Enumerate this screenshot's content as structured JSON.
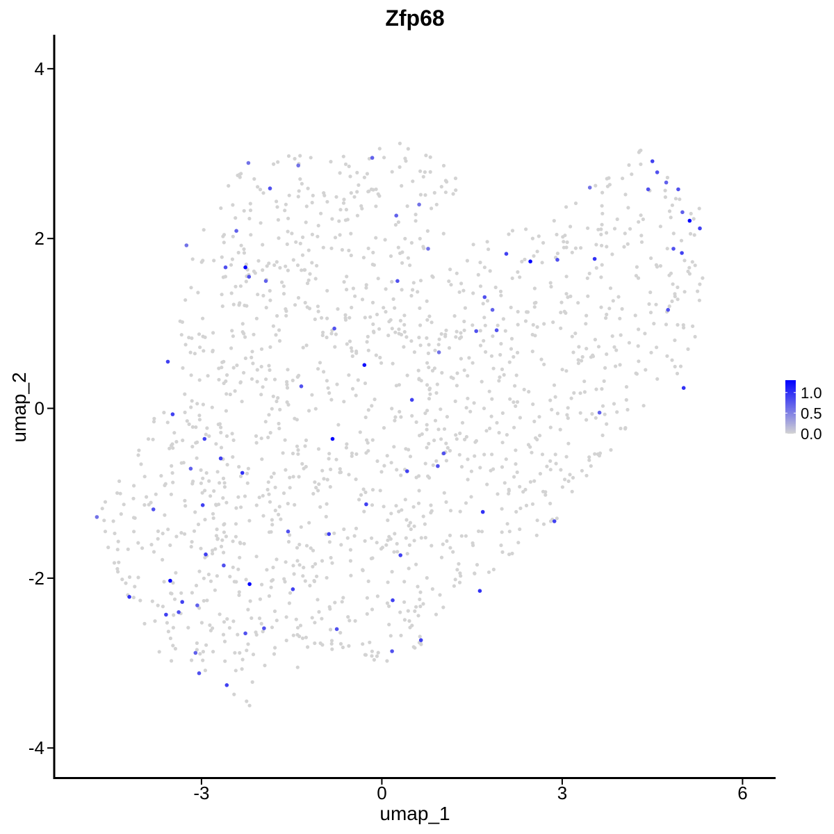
{
  "chart_data": {
    "type": "scatter",
    "title": "Zfp68",
    "xlabel": "umap_1",
    "ylabel": "umap_2",
    "xlim": [
      -5.45,
      6.55
    ],
    "ylim": [
      -4.35,
      4.4
    ],
    "x_ticks": [
      -3,
      0,
      3,
      6
    ],
    "y_ticks": [
      -4,
      -2,
      0,
      2,
      4
    ],
    "x_tick_labels": [
      "-3",
      "0",
      "3",
      "6"
    ],
    "y_tick_labels": [
      "-4",
      "-2",
      "0",
      "2",
      "4"
    ],
    "grid": false,
    "legend": {
      "placement": "right",
      "type": "colorbar",
      "title": "",
      "ticks": [
        0.0,
        0.5,
        1.0
      ],
      "tick_labels": [
        "0.0",
        "0.5",
        "1.0"
      ],
      "range": [
        0,
        1.3
      ]
    },
    "colors": {
      "low": "#d3d3d3",
      "high": "#0000ff"
    },
    "points": [
      {
        "x": -2.27,
        "y": 1.66,
        "v": 1.3
      },
      {
        "x": 2.47,
        "y": 1.73,
        "v": 1.3
      },
      {
        "x": 5.12,
        "y": 2.21,
        "v": 1.3
      },
      {
        "x": -3.52,
        "y": -2.03,
        "v": 1.3
      },
      {
        "x": -2.2,
        "y": -2.07,
        "v": 1.3
      },
      {
        "x": -0.82,
        "y": -0.36,
        "v": 1.3
      },
      {
        "x": -0.29,
        "y": 0.51,
        "v": 1.2
      },
      {
        "x": 4.5,
        "y": 2.91,
        "v": 0.9
      },
      {
        "x": 4.43,
        "y": 2.58,
        "v": 0.8
      },
      {
        "x": 4.58,
        "y": 2.78,
        "v": 0.8
      },
      {
        "x": 4.73,
        "y": 2.66,
        "v": 0.7
      },
      {
        "x": 4.93,
        "y": 2.58,
        "v": 0.8
      },
      {
        "x": 5.0,
        "y": 2.31,
        "v": 0.7
      },
      {
        "x": 5.29,
        "y": 2.12,
        "v": 0.9
      },
      {
        "x": 4.85,
        "y": 1.88,
        "v": 0.8
      },
      {
        "x": 4.99,
        "y": 1.83,
        "v": 0.9
      },
      {
        "x": 4.76,
        "y": 1.16,
        "v": 0.8
      },
      {
        "x": 5.02,
        "y": 0.24,
        "v": 1.0
      },
      {
        "x": 3.54,
        "y": 1.76,
        "v": 1.0
      },
      {
        "x": 2.92,
        "y": 1.75,
        "v": 0.8
      },
      {
        "x": 2.07,
        "y": 1.82,
        "v": 0.9
      },
      {
        "x": 3.46,
        "y": 2.6,
        "v": 0.6
      },
      {
        "x": 1.71,
        "y": 1.31,
        "v": 0.8
      },
      {
        "x": 1.84,
        "y": 1.16,
        "v": 0.7
      },
      {
        "x": 1.91,
        "y": 0.92,
        "v": 0.8
      },
      {
        "x": 0.77,
        "y": 1.88,
        "v": 0.6
      },
      {
        "x": 0.26,
        "y": 1.5,
        "v": 0.8
      },
      {
        "x": 0.24,
        "y": 2.27,
        "v": 0.7
      },
      {
        "x": 0.62,
        "y": 2.4,
        "v": 0.6
      },
      {
        "x": -0.16,
        "y": 2.95,
        "v": 0.7
      },
      {
        "x": -1.39,
        "y": 2.86,
        "v": 0.6
      },
      {
        "x": -1.86,
        "y": 2.59,
        "v": 0.8
      },
      {
        "x": -2.22,
        "y": 2.89,
        "v": 0.6
      },
      {
        "x": -2.42,
        "y": 2.09,
        "v": 0.7
      },
      {
        "x": -2.6,
        "y": 1.66,
        "v": 0.8
      },
      {
        "x": -2.21,
        "y": 1.55,
        "v": 0.8
      },
      {
        "x": -3.25,
        "y": 1.92,
        "v": 0.6
      },
      {
        "x": -1.93,
        "y": 1.5,
        "v": 0.7
      },
      {
        "x": -3.56,
        "y": 0.55,
        "v": 0.9
      },
      {
        "x": -3.48,
        "y": -0.07,
        "v": 0.9
      },
      {
        "x": -2.95,
        "y": -0.36,
        "v": 0.9
      },
      {
        "x": -2.68,
        "y": -0.59,
        "v": 0.9
      },
      {
        "x": -2.32,
        "y": -0.76,
        "v": 1.0
      },
      {
        "x": -3.18,
        "y": -0.71,
        "v": 0.7
      },
      {
        "x": -2.98,
        "y": -1.14,
        "v": 0.9
      },
      {
        "x": -1.56,
        "y": -1.45,
        "v": 0.8
      },
      {
        "x": -2.63,
        "y": -1.85,
        "v": 0.8
      },
      {
        "x": -2.93,
        "y": -1.72,
        "v": 0.9
      },
      {
        "x": -3.32,
        "y": -2.28,
        "v": 0.9
      },
      {
        "x": -3.07,
        "y": -2.32,
        "v": 0.7
      },
      {
        "x": -3.38,
        "y": -2.4,
        "v": 0.8
      },
      {
        "x": -3.59,
        "y": -2.43,
        "v": 0.9
      },
      {
        "x": -4.2,
        "y": -2.22,
        "v": 1.0
      },
      {
        "x": -4.74,
        "y": -1.28,
        "v": 0.6
      },
      {
        "x": -3.8,
        "y": -1.19,
        "v": 0.8
      },
      {
        "x": -3.1,
        "y": -2.88,
        "v": 0.7
      },
      {
        "x": -3.04,
        "y": -3.12,
        "v": 0.8
      },
      {
        "x": -2.58,
        "y": -3.26,
        "v": 0.9
      },
      {
        "x": -2.27,
        "y": -2.65,
        "v": 0.8
      },
      {
        "x": -1.96,
        "y": -2.59,
        "v": 0.8
      },
      {
        "x": -1.48,
        "y": -2.13,
        "v": 0.9
      },
      {
        "x": -0.75,
        "y": -2.6,
        "v": 0.8
      },
      {
        "x": 0.18,
        "y": -2.26,
        "v": 0.9
      },
      {
        "x": 0.65,
        "y": -2.73,
        "v": 0.9
      },
      {
        "x": 1.63,
        "y": -2.15,
        "v": 1.0
      },
      {
        "x": 1.68,
        "y": -1.22,
        "v": 1.0
      },
      {
        "x": 0.42,
        "y": -0.74,
        "v": 0.9
      },
      {
        "x": -0.26,
        "y": -1.13,
        "v": 0.9
      },
      {
        "x": -0.88,
        "y": -1.48,
        "v": 0.9
      },
      {
        "x": 0.5,
        "y": 0.1,
        "v": 0.9
      },
      {
        "x": 1.03,
        "y": -0.53,
        "v": 0.8
      },
      {
        "x": 0.93,
        "y": -0.68,
        "v": 0.8
      },
      {
        "x": 0.17,
        "y": -2.86,
        "v": 0.8
      },
      {
        "x": 0.31,
        "y": -1.73,
        "v": 0.9
      },
      {
        "x": 2.87,
        "y": -1.33,
        "v": 0.9
      },
      {
        "x": -1.34,
        "y": 0.26,
        "v": 0.8
      },
      {
        "x": -0.79,
        "y": 0.94,
        "v": 0.8
      },
      {
        "x": 0.95,
        "y": 0.66,
        "v": 0.6
      },
      {
        "x": 1.57,
        "y": 0.91,
        "v": 0.8
      },
      {
        "x": 3.62,
        "y": -0.05,
        "v": 0.7
      }
    ]
  }
}
